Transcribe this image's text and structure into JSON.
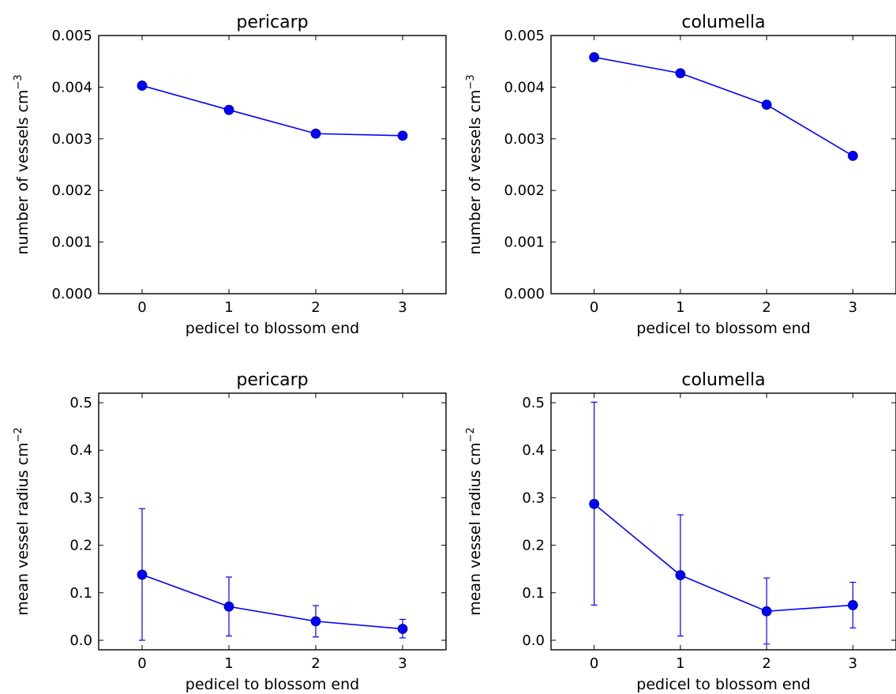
{
  "colors": {
    "series": "#0000ff",
    "axes": "#000000"
  },
  "chart_data": [
    {
      "type": "line",
      "title": "pericarp",
      "xlabel": "pedicel to blossom end",
      "ylabel": {
        "text": "number of vessels cm",
        "sup": "−3"
      },
      "x": [
        0,
        1,
        2,
        3
      ],
      "y": [
        0.00403,
        0.00356,
        0.0031,
        0.00306
      ],
      "xlim": [
        -0.5,
        3.5
      ],
      "ylim": [
        0,
        0.005
      ],
      "xticks": [
        "0",
        "1",
        "2",
        "3"
      ],
      "yticks": [
        "0.000",
        "0.001",
        "0.002",
        "0.003",
        "0.004",
        "0.005"
      ],
      "grid": false
    },
    {
      "type": "line",
      "title": "columella",
      "xlabel": "pedicel to blossom end",
      "ylabel": {
        "text": "number of vessels cm",
        "sup": "−3"
      },
      "x": [
        0,
        1,
        2,
        3
      ],
      "y": [
        0.00458,
        0.00427,
        0.00366,
        0.00267
      ],
      "xlim": [
        -0.5,
        3.5
      ],
      "ylim": [
        0,
        0.005
      ],
      "xticks": [
        "0",
        "1",
        "2",
        "3"
      ],
      "yticks": [
        "0.000",
        "0.001",
        "0.002",
        "0.003",
        "0.004",
        "0.005"
      ],
      "grid": false
    },
    {
      "type": "line",
      "title": "pericarp",
      "xlabel": "pedicel to blossom end",
      "ylabel": {
        "text": "mean vessel radius cm",
        "sup": "−2"
      },
      "x": [
        0,
        1,
        2,
        3
      ],
      "y": [
        0.138,
        0.071,
        0.04,
        0.024
      ],
      "err_low": [
        0.0,
        0.009,
        0.007,
        0.005
      ],
      "err_high": [
        0.277,
        0.133,
        0.073,
        0.044
      ],
      "xlim": [
        -0.5,
        3.5
      ],
      "ylim": [
        -0.02,
        0.52
      ],
      "xticks": [
        "0",
        "1",
        "2",
        "3"
      ],
      "ytick_values": [
        0.0,
        0.1,
        0.2,
        0.3,
        0.4,
        0.5
      ],
      "yticks": [
        "0.0",
        "0.1",
        "0.2",
        "0.3",
        "0.4",
        "0.5"
      ],
      "grid": false
    },
    {
      "type": "line",
      "title": "columella",
      "xlabel": "pedicel to blossom end",
      "ylabel": {
        "text": "mean vessel radius cm",
        "sup": "−2"
      },
      "x": [
        0,
        1,
        2,
        3
      ],
      "y": [
        0.287,
        0.137,
        0.061,
        0.074
      ],
      "err_low": [
        0.074,
        0.009,
        -0.008,
        0.026
      ],
      "err_high": [
        0.501,
        0.264,
        0.131,
        0.122
      ],
      "xlim": [
        -0.5,
        3.5
      ],
      "ylim": [
        -0.02,
        0.52
      ],
      "xticks": [
        "0",
        "1",
        "2",
        "3"
      ],
      "ytick_values": [
        0.0,
        0.1,
        0.2,
        0.3,
        0.4,
        0.5
      ],
      "yticks": [
        "0.0",
        "0.1",
        "0.2",
        "0.3",
        "0.4",
        "0.5"
      ],
      "grid": false
    }
  ]
}
